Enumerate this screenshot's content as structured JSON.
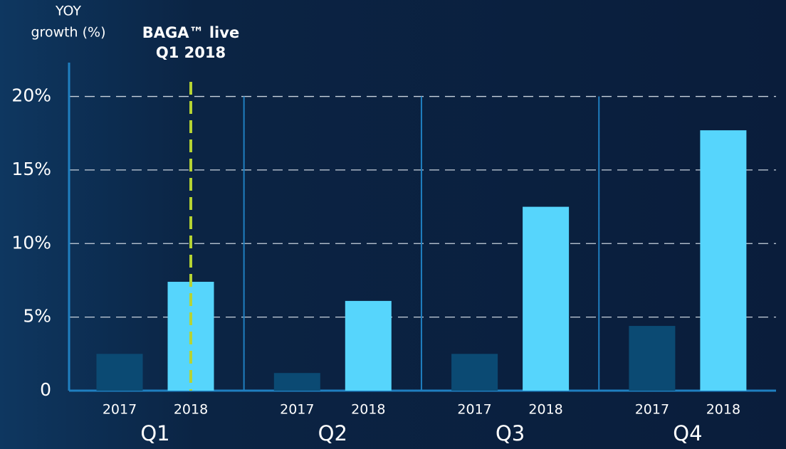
{
  "chart_data": {
    "type": "bar",
    "y_label": [
      "YOY",
      "growth (%)"
    ],
    "annotation": {
      "lines": [
        "BAGA™ live",
        "Q1 2018"
      ],
      "color": "#b5d334"
    },
    "categories": [
      "Q1",
      "Q2",
      "Q3",
      "Q4"
    ],
    "series": [
      {
        "name": "2017",
        "color": "#0b4a73",
        "values": [
          2.5,
          1.2,
          2.5,
          4.4
        ]
      },
      {
        "name": "2018",
        "color": "#56d5fc",
        "values": [
          7.4,
          6.1,
          12.5,
          17.7
        ]
      }
    ],
    "ylim": [
      0,
      22.3
    ],
    "yticks": [
      0,
      {
        "value": 5,
        "label": "5%"
      },
      {
        "value": 10,
        "label": "10%"
      },
      {
        "value": 15,
        "label": "15%"
      },
      {
        "value": 20,
        "label": "20%"
      }
    ],
    "grid": true
  }
}
